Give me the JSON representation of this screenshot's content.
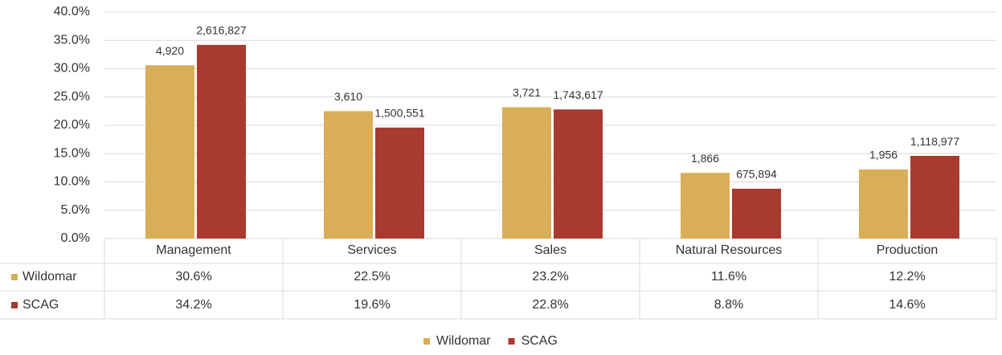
{
  "chart_data": {
    "type": "bar",
    "categories": [
      "Management",
      "Services",
      "Sales",
      "Natural Resources",
      "Production"
    ],
    "series": [
      {
        "name": "Wildomar",
        "color": "#d9ae58",
        "values": [
          30.6,
          22.5,
          23.2,
          11.6,
          12.2
        ],
        "value_labels": [
          "30.6%",
          "22.5%",
          "23.2%",
          "11.6%",
          "12.2%"
        ],
        "counts": [
          "4,920",
          "3,610",
          "3,721",
          "1,866",
          "1,956"
        ]
      },
      {
        "name": "SCAG",
        "color": "#a93a2f",
        "values": [
          34.2,
          19.6,
          22.8,
          8.8,
          14.6
        ],
        "value_labels": [
          "34.2%",
          "19.6%",
          "22.8%",
          "8.8%",
          "14.6%"
        ],
        "counts": [
          "2,616,827",
          "1,500,551",
          "1,743,617",
          "675,894",
          "1,118,977"
        ]
      }
    ],
    "ylim": [
      0,
      40
    ],
    "yticks": [
      {
        "value": 0,
        "label": "0.0%"
      },
      {
        "value": 5,
        "label": "5.0%"
      },
      {
        "value": 10,
        "label": "10.0%"
      },
      {
        "value": 15,
        "label": "15.0%"
      },
      {
        "value": 20,
        "label": "20.0%"
      },
      {
        "value": 25,
        "label": "25.0%"
      },
      {
        "value": 30,
        "label": "30.0%"
      },
      {
        "value": 35,
        "label": "35.0%"
      },
      {
        "value": 40,
        "label": "40.0%"
      }
    ],
    "grid": true,
    "legend": "bottom"
  }
}
